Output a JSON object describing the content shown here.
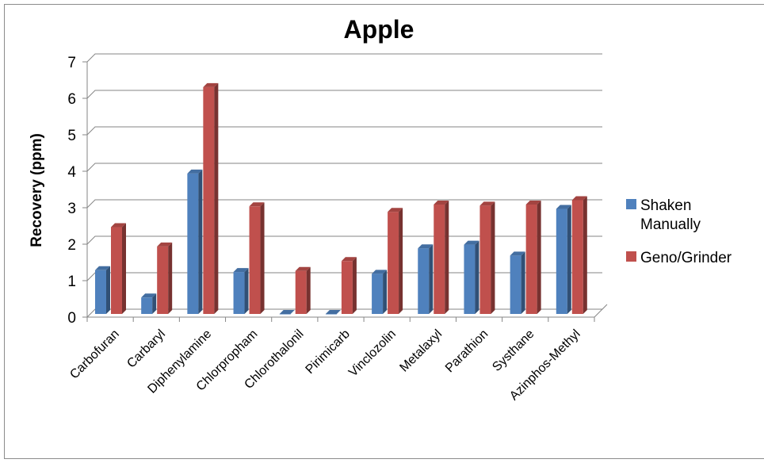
{
  "chart_data": {
    "type": "bar",
    "title": "Apple",
    "xlabel": "",
    "ylabel": "Recovery (ppm)",
    "ylim": [
      0,
      7
    ],
    "yticks": [
      0,
      1,
      2,
      3,
      4,
      5,
      6,
      7
    ],
    "grid": true,
    "three_d": true,
    "legend_position": "right",
    "categories": [
      "Carbofuran",
      "Carbaryl",
      "Diphenylamine",
      "Chlorpropham",
      "Chlorothalonil",
      "Pirimicarb",
      "Vinclozolin",
      "Metalaxyl",
      "Parathion",
      "Systhane",
      "Azinphos-Methyl"
    ],
    "series": [
      {
        "name": "Shaken Manually",
        "legend_lines": [
          "Shaken",
          "Manually"
        ],
        "color": "#4f81bd",
        "values": [
          1.2,
          0.45,
          3.85,
          1.15,
          0.0,
          0.0,
          1.1,
          1.8,
          1.9,
          1.6,
          2.88
        ]
      },
      {
        "name": "Geno/Grinder",
        "legend_lines": [
          "Geno/Grinder"
        ],
        "color": "#c0504d",
        "values": [
          2.38,
          1.85,
          6.22,
          2.95,
          1.18,
          1.45,
          2.8,
          3.0,
          2.97,
          3.0,
          3.12
        ]
      }
    ]
  }
}
